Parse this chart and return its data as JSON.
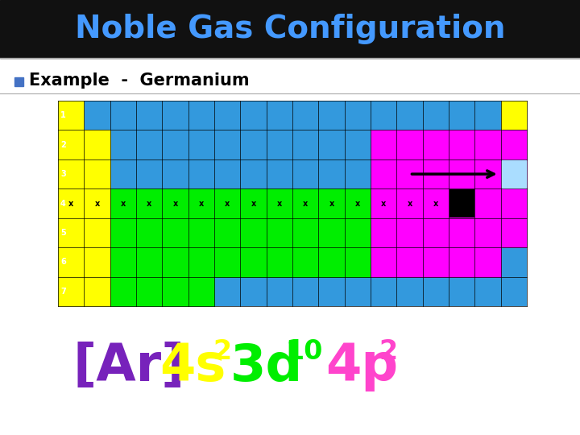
{
  "title": "Noble Gas Configuration",
  "title_color": "#4499ff",
  "title_bg": "#111111",
  "subtitle": "Example  -  Germanium",
  "subtitle_bullet_color": "#4472c4",
  "bg_color": "#ffffff",
  "table_bg": "#3399dd",
  "yellow_color": "#ffff00",
  "green_color": "#00ee00",
  "magenta_color": "#ff00ff",
  "lightblue_color": "#aaddff",
  "formula_ar_color": "#7722bb",
  "formula_s_color": "#ffff00",
  "formula_d_color": "#00ee00",
  "formula_p_color": "#ff44cc",
  "period_labels": [
    "1",
    "2",
    "3",
    "4",
    "5",
    "6",
    "7"
  ]
}
